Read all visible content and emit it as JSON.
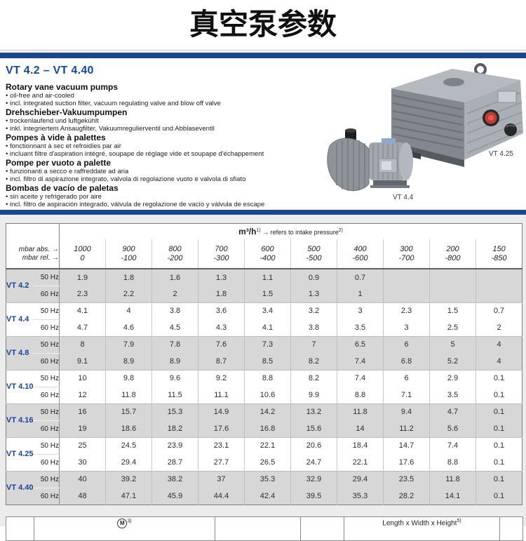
{
  "page": {
    "title": "真空泵参数"
  },
  "product": {
    "heading": "VT 4.2 – VT 4.40",
    "languages": [
      {
        "title": "Rotary vane vacuum pumps",
        "bullets": [
          "oil-free and air-cooled",
          "incl. integrated suction filter, vacuum regulating valve and blow off valve"
        ]
      },
      {
        "title": "Drehschieber-Vakuumpumpen",
        "bullets": [
          "trockenlaufend und luftgekühlt",
          "inkl. integriertem Ansaugfilter, Vakuumregulierventil und Abblaseventil"
        ]
      },
      {
        "title": "Pompes à vide à palettes",
        "bullets": [
          "fonctionnant à sec et refroidies par air",
          "incluant filtre d'aspiration intégré, soupape de réglage vide et soupape d'échappement"
        ]
      },
      {
        "title": "Pompe per vuoto a palette",
        "bullets": [
          "funzionanti a secco e raffreddate ad aria",
          "incl. filtro di aspirazione integrato, valvola di regolazione vuoto e valvola di sfiato"
        ]
      },
      {
        "title": "Bombas de vacío de paletas",
        "bullets": [
          "sin aceite y refrigerado por aire",
          "incl. filtro de aspiración integrado, válvula de regolazione de vacío y válvula de escape"
        ]
      }
    ],
    "images": [
      {
        "label": "VT 4.25"
      },
      {
        "label": "VT 4.4"
      }
    ]
  },
  "table": {
    "flow_header": {
      "unit": "m³/h",
      "unit_sup": "1)",
      "note": "→ refers to intake pressure",
      "note_sup": "2)"
    },
    "abs_label": "mbar abs. →",
    "rel_label": "mbar rel. →",
    "pressure_abs": [
      "1000",
      "900",
      "800",
      "700",
      "600",
      "500",
      "400",
      "300",
      "200",
      "150"
    ],
    "pressure_rel": [
      "0",
      "-100",
      "-200",
      "-300",
      "-400",
      "-500",
      "-600",
      "-700",
      "-800",
      "-850"
    ],
    "groups": [
      {
        "model": "VT 4.2",
        "shaded": true,
        "rows": [
          {
            "freq": "50 Hz",
            "values": [
              "1.9",
              "1.8",
              "1.6",
              "1.3",
              "1.1",
              "0.9",
              "0.7",
              "",
              "",
              ""
            ]
          },
          {
            "freq": "60 Hz",
            "values": [
              "2.3",
              "2.2",
              "2",
              "1.8",
              "1.5",
              "1.3",
              "1",
              "",
              "",
              ""
            ]
          }
        ]
      },
      {
        "model": "VT 4.4",
        "shaded": false,
        "rows": [
          {
            "freq": "50 Hz",
            "values": [
              "4.1",
              "4",
              "3.8",
              "3.6",
              "3.4",
              "3.2",
              "3",
              "2.3",
              "1.5",
              "0.7"
            ]
          },
          {
            "freq": "60 Hz",
            "values": [
              "4.7",
              "4.6",
              "4.5",
              "4.3",
              "4.1",
              "3.8",
              "3.5",
              "3",
              "2.5",
              "2"
            ]
          }
        ]
      },
      {
        "model": "VT 4.8",
        "shaded": true,
        "rows": [
          {
            "freq": "50 Hz",
            "values": [
              "8",
              "7.9",
              "7.8",
              "7.6",
              "7.3",
              "7",
              "6.5",
              "6",
              "5",
              "4"
            ]
          },
          {
            "freq": "60 Hz",
            "values": [
              "9.1",
              "8.9",
              "8.9",
              "8.7",
              "8.5",
              "8.2",
              "7.4",
              "6.8",
              "5.2",
              "4"
            ]
          }
        ]
      },
      {
        "model": "VT 4.10",
        "shaded": false,
        "rows": [
          {
            "freq": "50 Hz",
            "values": [
              "10",
              "9.8",
              "9.6",
              "9.2",
              "8.8",
              "8.2",
              "7.4",
              "6",
              "2.9",
              "0.1"
            ]
          },
          {
            "freq": "60 Hz",
            "values": [
              "12",
              "11.8",
              "11.5",
              "11.1",
              "10.6",
              "9.9",
              "8.8",
              "7.1",
              "3.5",
              "0.1"
            ]
          }
        ]
      },
      {
        "model": "VT 4.16",
        "shaded": true,
        "rows": [
          {
            "freq": "50 Hz",
            "values": [
              "16",
              "15.7",
              "15.3",
              "14.9",
              "14.2",
              "13.2",
              "11.8",
              "9.4",
              "4.7",
              "0.1"
            ]
          },
          {
            "freq": "60 Hz",
            "values": [
              "19",
              "18.6",
              "18.2",
              "17.6",
              "16.8",
              "15.6",
              "14",
              "11.2",
              "5.6",
              "0.1"
            ]
          }
        ]
      },
      {
        "model": "VT 4.25",
        "shaded": false,
        "rows": [
          {
            "freq": "50 Hz",
            "values": [
              "25",
              "24.5",
              "23.9",
              "23.1",
              "22.1",
              "20.6",
              "18.4",
              "14.7",
              "7.4",
              "0.1"
            ]
          },
          {
            "freq": "60 Hz",
            "values": [
              "30",
              "29.4",
              "28.7",
              "27.7",
              "26.5",
              "24.7",
              "22.1",
              "17.6",
              "8.8",
              "0.1"
            ]
          }
        ]
      },
      {
        "model": "VT 4.40",
        "shaded": true,
        "rows": [
          {
            "freq": "50 Hz",
            "values": [
              "40",
              "39.2",
              "38.2",
              "37",
              "35.3",
              "32.9",
              "29.4",
              "23.5",
              "11.8",
              "0.1"
            ]
          },
          {
            "freq": "60 Hz",
            "values": [
              "48",
              "47.1",
              "45.9",
              "44.4",
              "42.4",
              "39.5",
              "35.3",
              "28.2",
              "14.1",
              "0.1"
            ]
          }
        ]
      }
    ]
  },
  "footer_table": {
    "motor_symbol": "M",
    "motor_sup": "3)",
    "dims_label": "Length x Width x Height",
    "dims_sup": "5)"
  },
  "colors": {
    "accent_blue": "#1a4496",
    "row_shaded": "#d7d7d7",
    "title_color": "#101010"
  }
}
